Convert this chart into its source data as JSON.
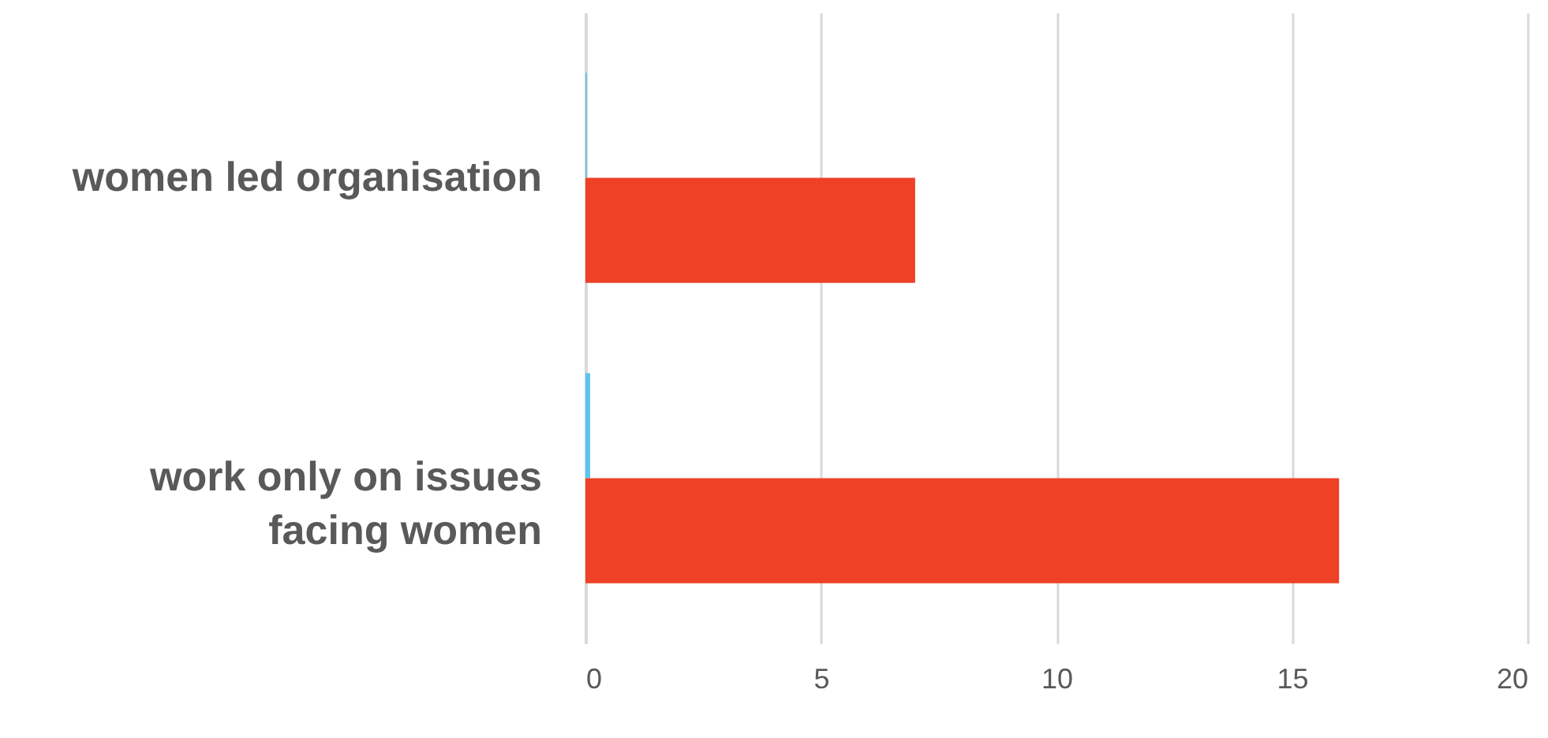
{
  "chart_data": {
    "type": "bar",
    "orientation": "horizontal",
    "categories": [
      "women led organisation",
      "work only on issues facing women"
    ],
    "series": [
      {
        "color": "#5bc4ef",
        "values": [
          0.03,
          0.1
        ]
      },
      {
        "color": "#ee4126",
        "values": [
          7,
          16
        ]
      }
    ],
    "xlim": [
      0,
      20
    ],
    "xticks": [
      0,
      5,
      10,
      15,
      20
    ],
    "grid": "x"
  }
}
